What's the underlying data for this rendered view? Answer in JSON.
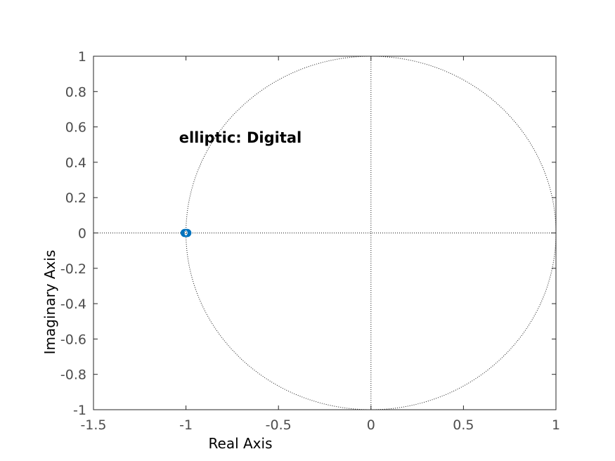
{
  "chart_data": {
    "type": "scatter",
    "title": "",
    "annotation": "elliptic: Digital",
    "xlabel": "Real Axis",
    "ylabel": "Imaginary Axis",
    "xlim": [
      -1.5,
      1
    ],
    "ylim": [
      -1,
      1
    ],
    "x_ticks": [
      -1.5,
      -1,
      -0.5,
      0,
      0.5,
      1
    ],
    "x_tick_labels": [
      "-1.5",
      "-1",
      "-0.5",
      "0",
      "0.5",
      "1"
    ],
    "y_ticks": [
      1,
      0.8,
      0.6,
      0.4,
      0.2,
      0,
      -0.2,
      -0.4,
      -0.6,
      -0.8,
      -1
    ],
    "y_tick_labels": [
      "1",
      "0.8",
      "0.6",
      "0.4",
      "0.2",
      "0",
      "-0.2",
      "-0.4",
      "-0.6",
      "-0.8",
      "-1"
    ],
    "unit_circle": {
      "center": [
        0,
        0
      ],
      "radius": 1,
      "style": "dotted"
    },
    "reference_lines": {
      "real_axis_y": 0,
      "imaginary_axis_x": 0,
      "style": "dotted"
    },
    "grid": false,
    "marker_color": "#0072bd",
    "zeros": [
      {
        "re": -1.0,
        "im": 0
      },
      {
        "re": -1.0,
        "im": 0
      },
      {
        "re": -1.0,
        "im": 0
      },
      {
        "re": -1.0,
        "im": 0
      }
    ],
    "poles": [],
    "marker": "o"
  }
}
